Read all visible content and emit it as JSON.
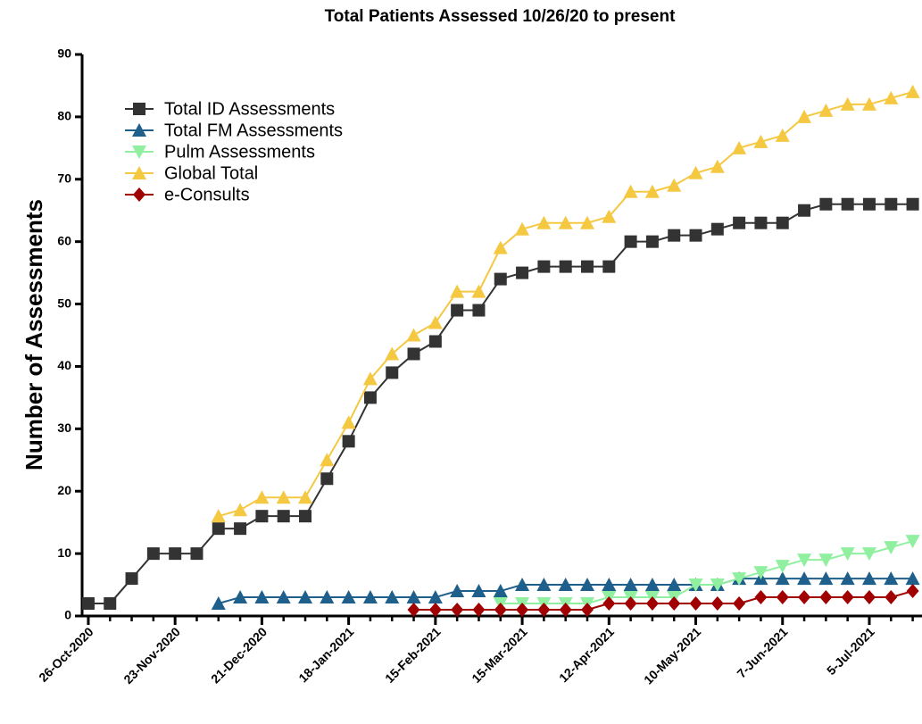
{
  "chart_data": {
    "type": "line",
    "title": "Total Patients Assessed 10/26/20 to present",
    "y_label": "Number of Assessments",
    "x": [
      "26-Oct-2020",
      "2-Nov-2020",
      "9-Nov-2020",
      "16-Nov-2020",
      "23-Nov-2020",
      "30-Nov-2020",
      "7-Dec-2020",
      "14-Dec-2020",
      "21-Dec-2020",
      "28-Dec-2020",
      "4-Jan-2021",
      "11-Jan-2021",
      "18-Jan-2021",
      "25-Jan-2021",
      "1-Feb-2021",
      "8-Feb-2021",
      "15-Feb-2021",
      "22-Feb-2021",
      "1-Mar-2021",
      "8-Mar-2021",
      "15-Mar-2021",
      "22-Mar-2021",
      "29-Mar-2021",
      "5-Apr-2021",
      "12-Apr-2021",
      "19-Apr-2021",
      "26-Apr-2021",
      "3-May-2021",
      "10-May-2021",
      "17-May-2021",
      "24-May-2021",
      "31-May-2021",
      "7-Jun-2021",
      "14-Jun-2021",
      "21-Jun-2021",
      "28-Jun-2021",
      "5-Jul-2021",
      "12-Jul-2021",
      "19-Jul-2021"
    ],
    "series": [
      {
        "name": "Total ID Assessments",
        "color": "#333333",
        "marker": "square",
        "values": [
          2,
          2,
          6,
          10,
          10,
          10,
          14,
          14,
          16,
          16,
          16,
          22,
          28,
          35,
          39,
          42,
          44,
          49,
          49,
          54,
          55,
          56,
          56,
          56,
          56,
          60,
          60,
          61,
          61,
          62,
          63,
          63,
          63,
          65,
          66,
          66,
          66,
          66,
          66
        ]
      },
      {
        "name": "Total FM Assessments",
        "color": "#1f5f8b",
        "marker": "triangle-up",
        "values": [
          null,
          null,
          null,
          null,
          null,
          null,
          2,
          3,
          3,
          3,
          3,
          3,
          3,
          3,
          3,
          3,
          3,
          4,
          4,
          4,
          5,
          5,
          5,
          5,
          5,
          5,
          5,
          5,
          5,
          5,
          6,
          6,
          6,
          6,
          6,
          6,
          6,
          6,
          6
        ]
      },
      {
        "name": "Pulm Assessments",
        "color": "#90f0a0",
        "marker": "triangle-down",
        "values": [
          null,
          null,
          null,
          null,
          null,
          null,
          null,
          null,
          null,
          null,
          null,
          null,
          null,
          null,
          null,
          null,
          null,
          null,
          null,
          2,
          2,
          2,
          2,
          2,
          3,
          3,
          3,
          3,
          5,
          5,
          6,
          7,
          8,
          9,
          9,
          10,
          10,
          11,
          12
        ]
      },
      {
        "name": "Global Total",
        "color": "#f5c842",
        "marker": "triangle-up",
        "values": [
          null,
          null,
          null,
          null,
          null,
          null,
          16,
          17,
          19,
          19,
          19,
          25,
          31,
          38,
          42,
          45,
          47,
          52,
          52,
          59,
          62,
          63,
          63,
          63,
          64,
          68,
          68,
          69,
          71,
          72,
          75,
          76,
          77,
          80,
          81,
          82,
          82,
          83,
          84
        ]
      },
      {
        "name": "e-Consults",
        "color": "#a00000",
        "marker": "diamond",
        "values": [
          null,
          null,
          null,
          null,
          null,
          null,
          null,
          null,
          null,
          null,
          null,
          null,
          null,
          null,
          null,
          1,
          1,
          1,
          1,
          1,
          1,
          1,
          1,
          1,
          2,
          2,
          2,
          2,
          2,
          2,
          2,
          3,
          3,
          3,
          3,
          3,
          3,
          3,
          4
        ]
      }
    ],
    "xlim": [
      "24-Oct-2020",
      "22-Jul-2021"
    ],
    "xticks": [
      "26-Oct-2020",
      "23-Nov-2020",
      "21-Dec-2020",
      "18-Jan-2021",
      "15-Feb-2021",
      "15-Mar-2021",
      "12-Apr-2021",
      "10-May-2021",
      "7-Jun-2021",
      "5-Jul-2021"
    ],
    "ylim": [
      0,
      90
    ],
    "yticks": [
      0,
      10,
      20,
      30,
      40,
      50,
      60,
      70,
      80,
      90
    ],
    "legend": "upper-left"
  }
}
